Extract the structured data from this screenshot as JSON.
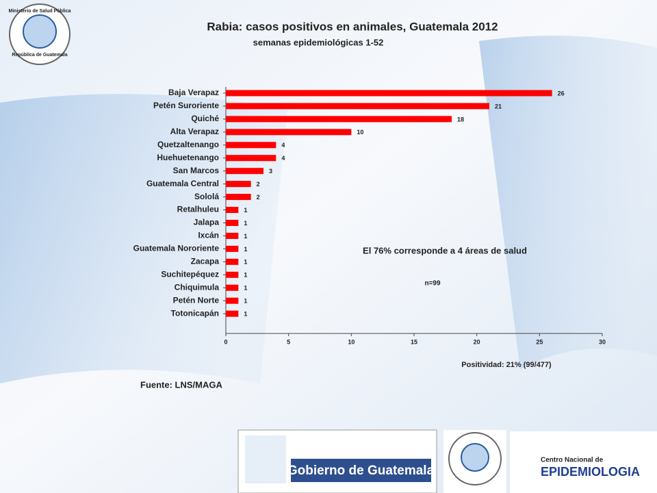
{
  "chart_data": {
    "type": "hbar",
    "title": "Rabia: casos positivos en animales, Guatemala 2012",
    "subtitle": "semanas epidemiológicas 1-52",
    "categories": [
      "Baja Verapaz",
      "Petén Suroriente",
      "Quiché",
      "Alta Verapaz",
      "Quetzaltenango",
      "Huehuetenango",
      "San Marcos",
      "Guatemala Central",
      "Sololá",
      "Retalhuleu",
      "Jalapa",
      "Ixcán",
      "Guatemala Nororiente",
      "Zacapa",
      "Suchitepéquez",
      "Chiquimula",
      "Petén Norte",
      "Totonicapán"
    ],
    "values": [
      26,
      21,
      18,
      10,
      4,
      4,
      3,
      2,
      2,
      1,
      1,
      1,
      1,
      1,
      1,
      1,
      1,
      1
    ],
    "color": "#ff0000",
    "xlim": [
      0,
      30
    ],
    "xticks": [
      0,
      5,
      10,
      15,
      20,
      25,
      30
    ],
    "annotations": [
      "El 76% corresponde a 4 áreas de salud",
      "n=99",
      "Positividad: 21% (99/477)",
      "Fuente: LNS/MAGA"
    ]
  },
  "logos": {
    "ministerio": "Ministerio de Salud Pública",
    "republica": "República de Guatemala",
    "gobierno": "Gobierno de Guatemala",
    "centro": "Centro Nacional de",
    "epidemiologia": "EPIDEMIOLOGIA"
  }
}
